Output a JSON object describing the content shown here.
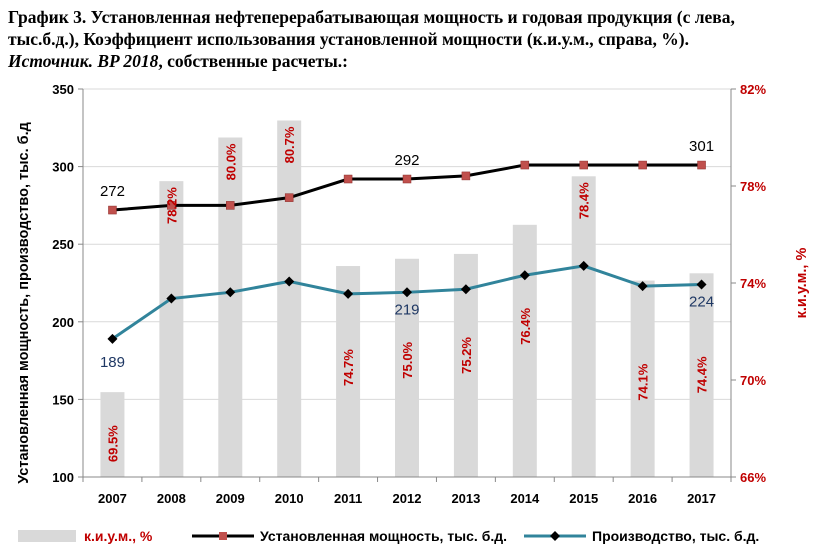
{
  "header": {
    "title": "График 3. Установленная нефтеперерабатывающая мощность и годовая продукция (с лева, тыс.б.д.), Коэффициент использования установленной мощности (к.и.у.м., справа, %).",
    "source_label": "Источник",
    "source_italic_rest": ". BP 2018",
    "source_rest": ", собственные расчеты.:"
  },
  "chart_data": {
    "type": "bar+line",
    "categories": [
      "2007",
      "2008",
      "2009",
      "2010",
      "2011",
      "2012",
      "2013",
      "2014",
      "2015",
      "2016",
      "2017"
    ],
    "ylabel_left": "Установленная мощность, производство, тыс. б.д",
    "ylabel_right": "к.и.у.м., %",
    "ylim_left": [
      100,
      350
    ],
    "yticks_left": [
      100,
      150,
      200,
      250,
      300,
      350
    ],
    "ylim_right": [
      66,
      82
    ],
    "yticks_right": [
      "66%",
      "70%",
      "74%",
      "78%",
      "82%"
    ],
    "series": [
      {
        "name": "к.и.у.м., %",
        "axis": "right",
        "kind": "bar",
        "color": "#d9d9d9",
        "values": [
          69.5,
          78.2,
          80.0,
          80.7,
          74.7,
          75.0,
          75.2,
          76.4,
          78.4,
          74.1,
          74.4
        ],
        "labels": [
          "69.5%",
          "78.2%",
          "80.0%",
          "80.7%",
          "74.7%",
          "75.0%",
          "75.2%",
          "76.4%",
          "78.4%",
          "74.1%",
          "74.4%"
        ]
      },
      {
        "name": "Установленная мощность, тыс. б.д.",
        "axis": "left",
        "kind": "line",
        "color": "#000000",
        "marker_color": "#c0504d",
        "values": [
          272,
          275,
          275,
          280,
          292,
          292,
          294,
          301,
          301,
          301,
          301
        ],
        "labels": [
          "272",
          "",
          "",
          "",
          "",
          "292",
          "",
          "",
          "",
          "",
          "301"
        ]
      },
      {
        "name": "Производство, тыс. б.д.",
        "axis": "left",
        "kind": "line",
        "color": "#31849b",
        "marker_color": "#000000",
        "values": [
          189,
          215,
          219,
          226,
          218,
          219,
          221,
          230,
          236,
          223,
          224
        ],
        "labels": [
          "189",
          "",
          "",
          "",
          "",
          "219",
          "",
          "",
          "",
          "",
          "224"
        ]
      }
    ],
    "bar_label_color": "#c00000",
    "right_axis_color": "#c00000",
    "legend_position": "bottom"
  }
}
